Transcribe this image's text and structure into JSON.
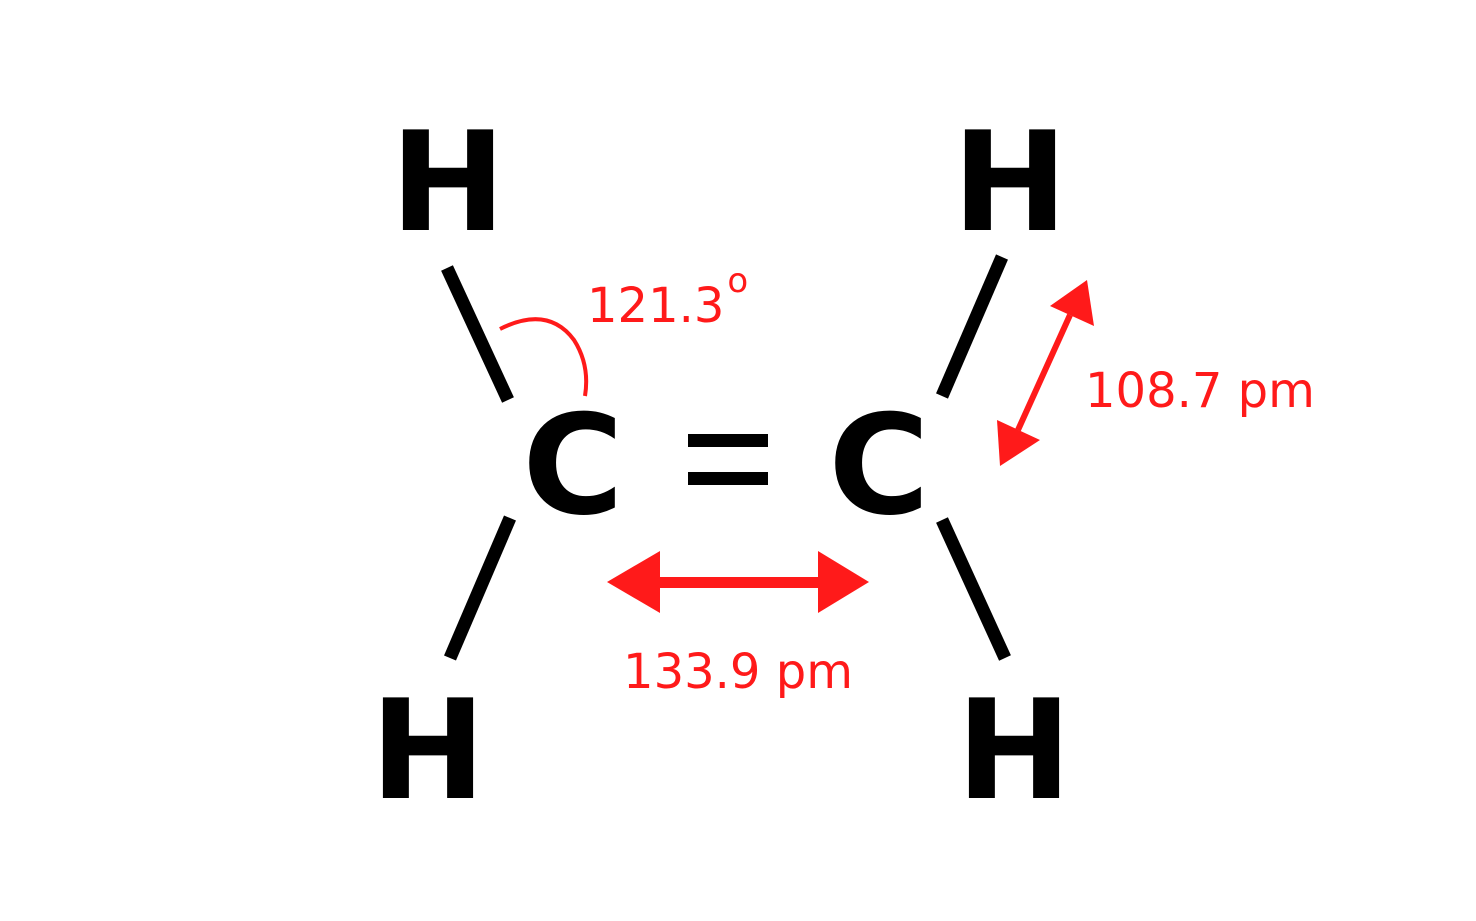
{
  "atoms": {
    "h_top_left": "H",
    "h_top_right": "H",
    "h_bottom_left": "H",
    "h_bottom_right": "H",
    "c_left": "C",
    "c_right": "C",
    "double_bond": "="
  },
  "annotations": {
    "bond_angle": "121.3",
    "degree_symbol": "o",
    "ch_bond_length": "108.7 pm",
    "cc_bond_length": "133.9 pm"
  },
  "colors": {
    "atoms": "#000000",
    "annotations": "#ff1a1a"
  }
}
